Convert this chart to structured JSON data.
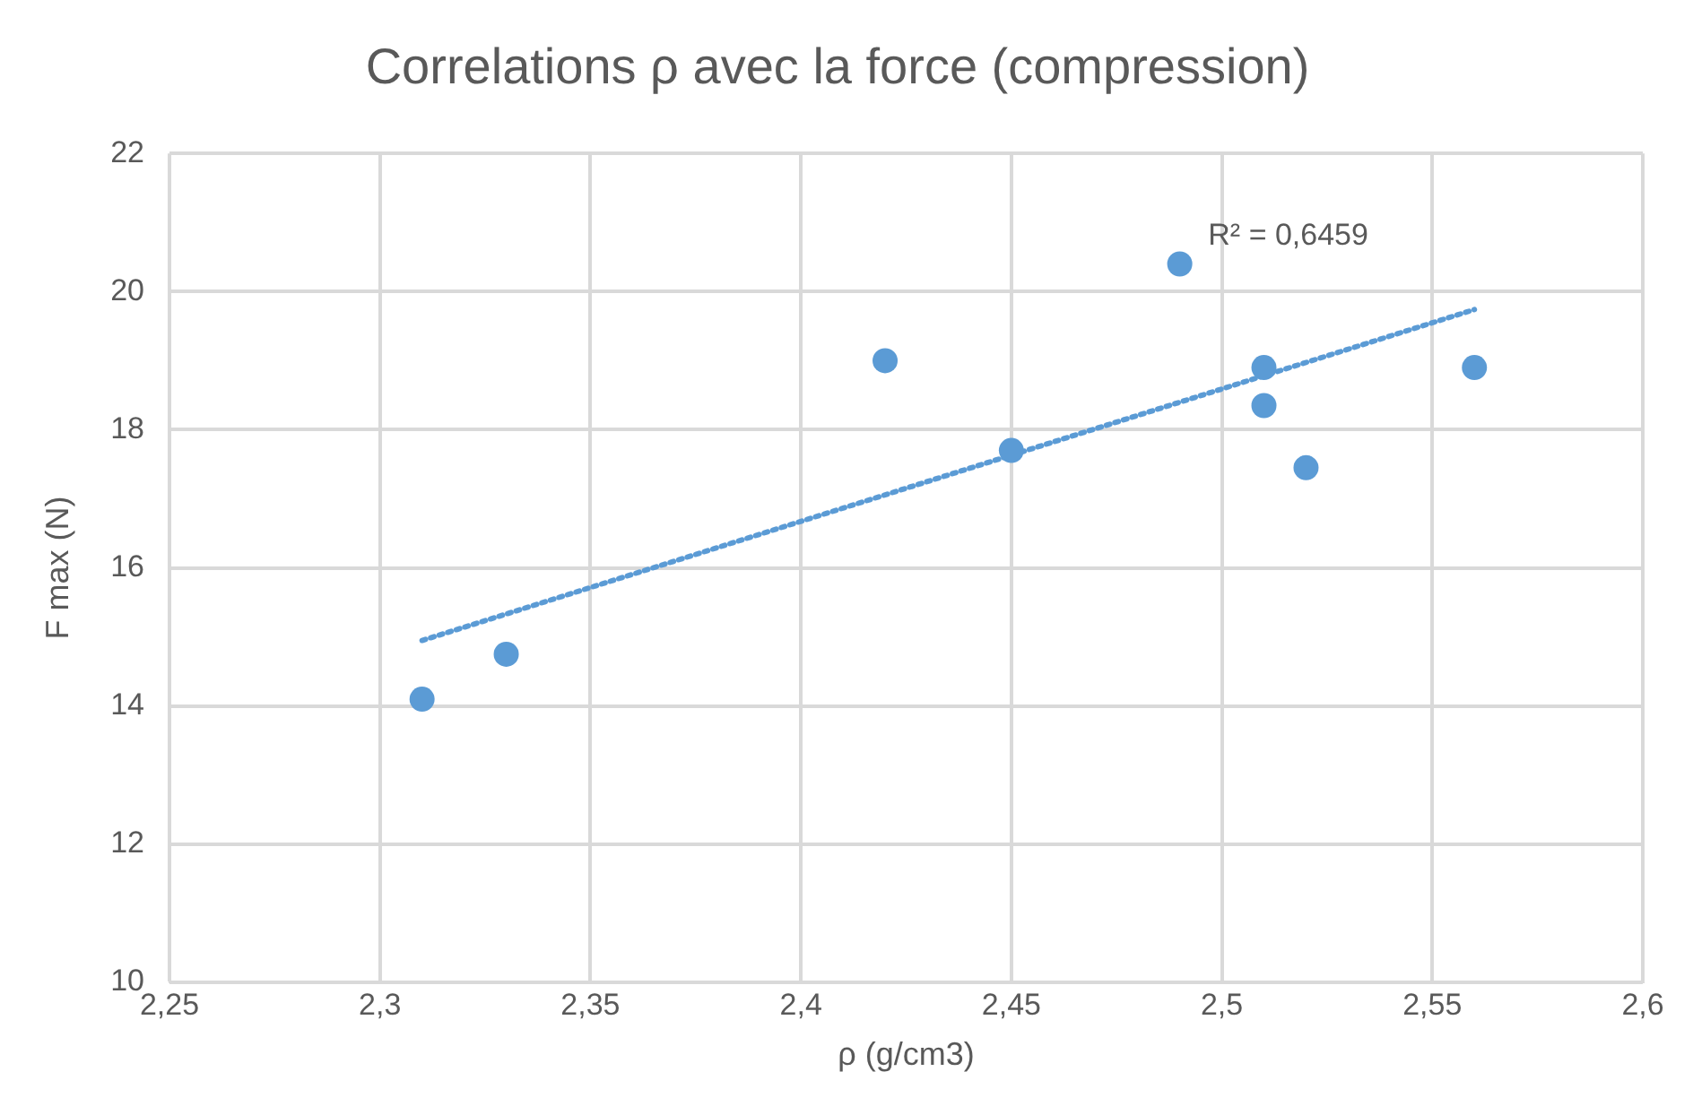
{
  "chart_data": {
    "type": "scatter",
    "title": "Correlations ρ avec la force (compression)",
    "xlabel": "ρ (g/cm3)",
    "ylabel": "F max (N)",
    "x": [
      2.31,
      2.33,
      2.42,
      2.45,
      2.49,
      2.51,
      2.51,
      2.52,
      2.56
    ],
    "series": [
      {
        "color": "#5b9bd5",
        "values": [
          14.1,
          14.75,
          19.0,
          17.7,
          20.4,
          18.9,
          18.35,
          17.45,
          18.9
        ]
      },
      {
        "type": "line",
        "color": "#5b9bd5",
        "line_style": "dotted",
        "marker": "none",
        "x": [
          2.31,
          2.56
        ],
        "values": [
          14.95,
          19.74
        ]
      }
    ],
    "marker": "circle",
    "xlim": [
      2.25,
      2.6
    ],
    "xticks": [
      {
        "value": 2.25,
        "label": "2,25"
      },
      {
        "value": 2.3,
        "label": "2,3"
      },
      {
        "value": 2.35,
        "label": "2,35"
      },
      {
        "value": 2.4,
        "label": "2,4"
      },
      {
        "value": 2.45,
        "label": "2,45"
      },
      {
        "value": 2.5,
        "label": "2,5"
      },
      {
        "value": 2.55,
        "label": "2,55"
      },
      {
        "value": 2.6,
        "label": "2,6"
      }
    ],
    "ylim": [
      10,
      22
    ],
    "yticks": [
      10,
      12,
      14,
      16,
      18,
      20,
      22
    ],
    "grid": true,
    "legend": false,
    "annotations": [
      "R² = 0,6459"
    ]
  }
}
